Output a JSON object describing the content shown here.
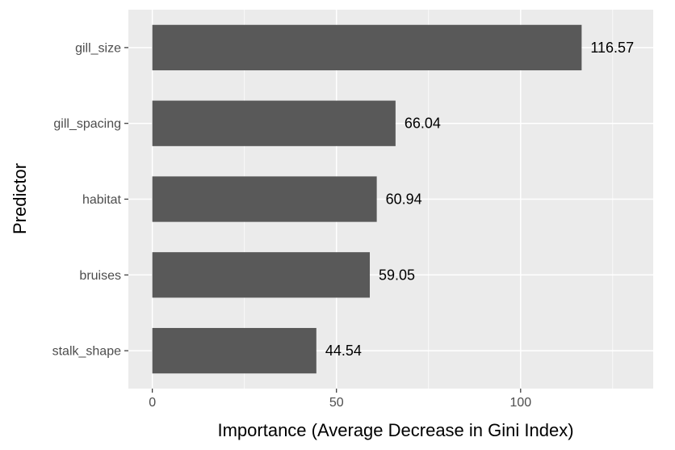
{
  "chart_data": {
    "type": "bar",
    "orientation": "horizontal",
    "categories": [
      "gill_size",
      "gill_spacing",
      "habitat",
      "bruises",
      "stalk_shape"
    ],
    "values": [
      116.57,
      66.04,
      60.94,
      59.05,
      44.54
    ],
    "value_labels": [
      "116.57",
      "66.04",
      "60.94",
      "59.05",
      "44.54"
    ],
    "xlabel": "Importance (Average Decrease in Gini Index)",
    "ylabel": "Predictor",
    "xlim": [
      -6.5,
      136
    ],
    "xticks": [
      0,
      50,
      100
    ],
    "xtick_labels": [
      "0",
      "50",
      "100"
    ],
    "grid": true,
    "colors": {
      "panel": "#EBEBEB",
      "grid_major": "#FFFFFF",
      "bar": "#595959",
      "tick_text": "#4D4D4D",
      "tick_mark": "#333333"
    }
  }
}
